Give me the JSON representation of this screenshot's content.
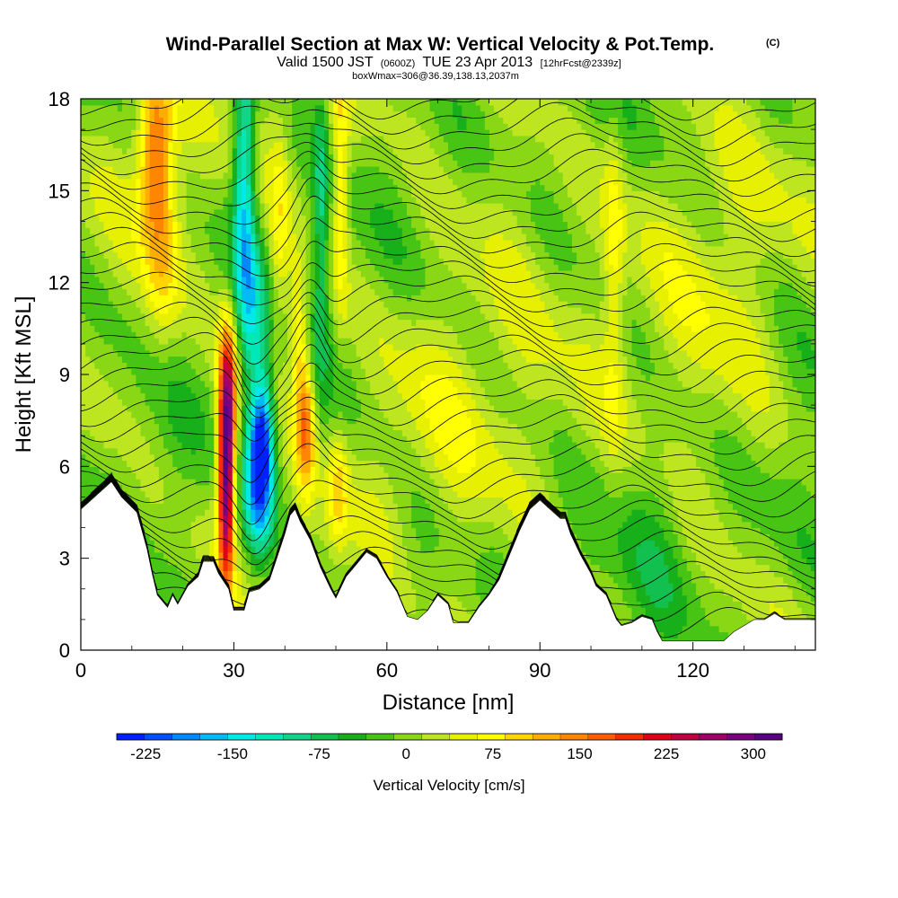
{
  "title": {
    "main": "Wind-Parallel Section at Max W: Vertical Velocity & Pot.Temp.",
    "main_suffix": "(C)",
    "valid_prefix": "Valid 1500 JST",
    "valid_zulu": "(0600Z)",
    "valid_date": "TUE 23 Apr 2013",
    "forecast": "[12hrFcst@2339z]",
    "box": "boxWmax=306@36.39,138.13,2037m"
  },
  "chart_data": {
    "type": "heatmap",
    "xlabel": "Distance [nm]",
    "ylabel": "Height [Kft MSL]",
    "xlim": [
      0,
      144
    ],
    "ylim": [
      0,
      18
    ],
    "xticks": [
      0,
      30,
      60,
      90,
      120
    ],
    "xtick_labels": [
      "0",
      "30",
      "60",
      "90",
      "120"
    ],
    "yticks": [
      0,
      3,
      6,
      9,
      12,
      15,
      18
    ],
    "ytick_labels": [
      "0",
      "3",
      "6",
      "9",
      "12",
      "15",
      "18"
    ],
    "terrain_kft": [
      [
        0,
        4.6
      ],
      [
        2,
        4.9
      ],
      [
        6,
        5.5
      ],
      [
        8,
        5.0
      ],
      [
        11,
        4.5
      ],
      [
        13,
        3.3
      ],
      [
        14,
        2.5
      ],
      [
        15,
        1.8
      ],
      [
        16,
        1.6
      ],
      [
        17,
        1.4
      ],
      [
        18,
        1.8
      ],
      [
        19,
        1.5
      ],
      [
        21,
        2.1
      ],
      [
        23,
        2.4
      ],
      [
        24,
        2.9
      ],
      [
        26,
        2.9
      ],
      [
        27,
        2.5
      ],
      [
        29,
        2.0
      ],
      [
        30,
        1.3
      ],
      [
        32,
        1.3
      ],
      [
        33,
        1.9
      ],
      [
        35,
        2.0
      ],
      [
        37,
        2.3
      ],
      [
        38,
        2.8
      ],
      [
        40,
        3.8
      ],
      [
        41,
        4.4
      ],
      [
        42,
        4.6
      ],
      [
        43,
        4.2
      ],
      [
        45,
        3.6
      ],
      [
        47,
        2.7
      ],
      [
        49,
        2.0
      ],
      [
        50,
        1.7
      ],
      [
        52,
        2.4
      ],
      [
        54,
        2.8
      ],
      [
        56,
        3.2
      ],
      [
        58,
        3.0
      ],
      [
        60,
        2.4
      ],
      [
        62,
        1.9
      ],
      [
        64,
        1.1
      ],
      [
        66,
        1.0
      ],
      [
        68,
        1.3
      ],
      [
        70,
        1.8
      ],
      [
        72,
        1.5
      ],
      [
        73,
        0.9
      ],
      [
        76,
        0.9
      ],
      [
        78,
        1.4
      ],
      [
        80,
        1.8
      ],
      [
        82,
        2.3
      ],
      [
        84,
        3.1
      ],
      [
        86,
        3.9
      ],
      [
        88,
        4.6
      ],
      [
        90,
        4.9
      ],
      [
        92,
        4.6
      ],
      [
        94,
        4.3
      ],
      [
        95,
        4.3
      ],
      [
        96,
        3.8
      ],
      [
        98,
        3.1
      ],
      [
        100,
        2.5
      ],
      [
        101,
        2.1
      ],
      [
        103,
        1.8
      ],
      [
        104,
        1.4
      ],
      [
        105,
        1.0
      ],
      [
        106,
        0.8
      ],
      [
        108,
        0.9
      ],
      [
        110,
        1.1
      ],
      [
        112,
        1.0
      ],
      [
        113,
        0.6
      ],
      [
        114,
        0.3
      ],
      [
        117,
        0.3
      ],
      [
        120,
        0.3
      ],
      [
        123,
        0.3
      ],
      [
        126,
        0.3
      ],
      [
        128,
        0.6
      ],
      [
        130,
        0.8
      ],
      [
        132,
        1.0
      ],
      [
        134,
        1.0
      ],
      [
        136,
        1.2
      ],
      [
        138,
        1.0
      ],
      [
        144,
        1.0
      ]
    ],
    "velocity_features": [
      {
        "x": 28.5,
        "y": 5.5,
        "sx": 1.1,
        "sy": 2.4,
        "w": 300
      },
      {
        "x": 29.0,
        "y": 8.5,
        "sx": 1.4,
        "sy": 1.8,
        "w": 180
      },
      {
        "x": 35.5,
        "y": 6.8,
        "sx": 1.6,
        "sy": 1.5,
        "w": -225
      },
      {
        "x": 34.5,
        "y": 4.8,
        "sx": 2.2,
        "sy": 1.6,
        "w": -120
      },
      {
        "x": 32.0,
        "y": 15.5,
        "sx": 1.5,
        "sy": 3.0,
        "w": -160
      },
      {
        "x": 33.5,
        "y": 11.0,
        "sx": 2.2,
        "sy": 2.0,
        "w": -90
      },
      {
        "x": 44.0,
        "y": 7.5,
        "sx": 1.3,
        "sy": 1.6,
        "w": 150
      },
      {
        "x": 42.5,
        "y": 10.5,
        "sx": 1.2,
        "sy": 1.5,
        "w": 100
      },
      {
        "x": 14.5,
        "y": 16.5,
        "sx": 2.3,
        "sy": 2.0,
        "w": 150
      },
      {
        "x": 16.0,
        "y": 13.0,
        "sx": 2.5,
        "sy": 2.5,
        "w": 80
      },
      {
        "x": 50.5,
        "y": 5.2,
        "sx": 1.4,
        "sy": 1.3,
        "w": 80
      },
      {
        "x": 47.0,
        "y": 14.0,
        "sx": 1.0,
        "sy": 3.5,
        "w": -80
      },
      {
        "x": 51.0,
        "y": 15.0,
        "sx": 1.1,
        "sy": 3.0,
        "w": 90
      },
      {
        "x": 39.0,
        "y": 13.0,
        "sx": 1.4,
        "sy": 3.0,
        "w": 60
      },
      {
        "x": 104.5,
        "y": 13.0,
        "sx": 1.4,
        "sy": 4.0,
        "w": 60
      },
      {
        "x": 3.0,
        "y": 6.5,
        "sx": 3.0,
        "sy": 2.0,
        "w": 25
      },
      {
        "x": 70.0,
        "y": 9.0,
        "sx": 10.0,
        "sy": 3.5,
        "w": 35
      },
      {
        "x": 125.0,
        "y": 9.0,
        "sx": 8.0,
        "sy": 5.0,
        "w": 35
      },
      {
        "x": 112.0,
        "y": 3.0,
        "sx": 5.0,
        "sy": 2.5,
        "w": -25
      },
      {
        "x": 85.0,
        "y": 15.5,
        "sx": 8.0,
        "sy": 3.0,
        "w": 30
      },
      {
        "x": 65.0,
        "y": 3.0,
        "sx": 4.0,
        "sy": 1.5,
        "w": -30
      }
    ],
    "colorbar": {
      "label": "Vertical Velocity [cm/s]",
      "ticks": [
        "-225",
        "-150",
        "-75",
        "0",
        "75",
        "150",
        "225",
        "300"
      ],
      "tick_values": [
        -225,
        -150,
        -75,
        0,
        75,
        150,
        225,
        300
      ],
      "levels": [
        -250,
        -225,
        -200,
        -175,
        -150,
        -125,
        -100,
        -75,
        -50,
        -25,
        0,
        25,
        50,
        75,
        100,
        125,
        150,
        175,
        200,
        225,
        250,
        275,
        300,
        325
      ],
      "colors": [
        "#0020ff",
        "#0050ff",
        "#0088ff",
        "#00bbf5",
        "#00e8e8",
        "#00e8b8",
        "#10d488",
        "#12c050",
        "#17b01a",
        "#48c414",
        "#8ad815",
        "#bde620",
        "#e6f000",
        "#ffff00",
        "#ffd400",
        "#ffae00",
        "#ff8600",
        "#ff5d00",
        "#f52d00",
        "#e00018",
        "#c00040",
        "#a00068",
        "#7a0080",
        "#5a0085"
      ]
    }
  }
}
